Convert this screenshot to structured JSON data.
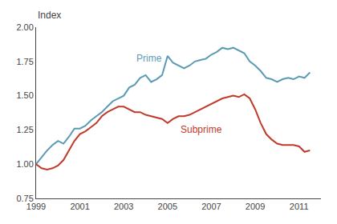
{
  "chart_data": {
    "type": "line",
    "ylabel": "Index",
    "x": [
      1999.0,
      1999.25,
      1999.5,
      1999.75,
      2000.0,
      2000.25,
      2000.5,
      2000.75,
      2001.0,
      2001.25,
      2001.5,
      2001.75,
      2002.0,
      2002.25,
      2002.5,
      2002.75,
      2003.0,
      2003.25,
      2003.5,
      2003.75,
      2004.0,
      2004.25,
      2004.5,
      2004.75,
      2005.0,
      2005.25,
      2005.5,
      2005.75,
      2006.0,
      2006.25,
      2006.5,
      2006.75,
      2007.0,
      2007.25,
      2007.5,
      2007.75,
      2008.0,
      2008.25,
      2008.5,
      2008.75,
      2009.0,
      2009.25,
      2009.5,
      2009.75,
      2010.0,
      2010.25,
      2010.5,
      2010.75,
      2011.0,
      2011.25,
      2011.5
    ],
    "series": [
      {
        "color": "#5b9ab5",
        "values": [
          1.0,
          1.05,
          1.1,
          1.14,
          1.17,
          1.15,
          1.2,
          1.26,
          1.26,
          1.28,
          1.32,
          1.35,
          1.38,
          1.42,
          1.46,
          1.48,
          1.5,
          1.56,
          1.58,
          1.63,
          1.65,
          1.6,
          1.62,
          1.65,
          1.79,
          1.74,
          1.72,
          1.7,
          1.72,
          1.75,
          1.76,
          1.77,
          1.8,
          1.82,
          1.85,
          1.84,
          1.85,
          1.83,
          1.81,
          1.75,
          1.72,
          1.68,
          1.63,
          1.62,
          1.6,
          1.62,
          1.63,
          1.62,
          1.64,
          1.63,
          1.67
        ]
      },
      {
        "color": "#c0392b",
        "values": [
          1.0,
          0.97,
          0.96,
          0.97,
          0.99,
          1.03,
          1.1,
          1.17,
          1.22,
          1.24,
          1.27,
          1.3,
          1.35,
          1.38,
          1.4,
          1.42,
          1.42,
          1.4,
          1.38,
          1.38,
          1.36,
          1.35,
          1.34,
          1.33,
          1.3,
          1.33,
          1.35,
          1.35,
          1.36,
          1.38,
          1.4,
          1.42,
          1.44,
          1.46,
          1.48,
          1.49,
          1.5,
          1.49,
          1.51,
          1.48,
          1.4,
          1.3,
          1.22,
          1.18,
          1.15,
          1.14,
          1.14,
          1.14,
          1.13,
          1.09,
          1.1
        ]
      }
    ],
    "annotations": [
      {
        "text": "Prime",
        "x": 2003.5,
        "y": 1.72,
        "color": "#5b9ab5"
      },
      {
        "text": "Subprime",
        "x": 2005.5,
        "y": 1.2,
        "color": "#c0392b"
      }
    ],
    "xlim": [
      1999,
      2012
    ],
    "xticks": [
      1999,
      2001,
      2003,
      2005,
      2007,
      2009,
      2011
    ],
    "ylim": [
      0.75,
      2.0
    ],
    "yticks": [
      0.75,
      {
        "value": 1.0,
        "label": "1.00"
      },
      1.25,
      {
        "value": 1.5,
        "label": "1.50"
      },
      1.75,
      {
        "value": 2.0,
        "label": "2.00"
      }
    ],
    "grid": false
  }
}
